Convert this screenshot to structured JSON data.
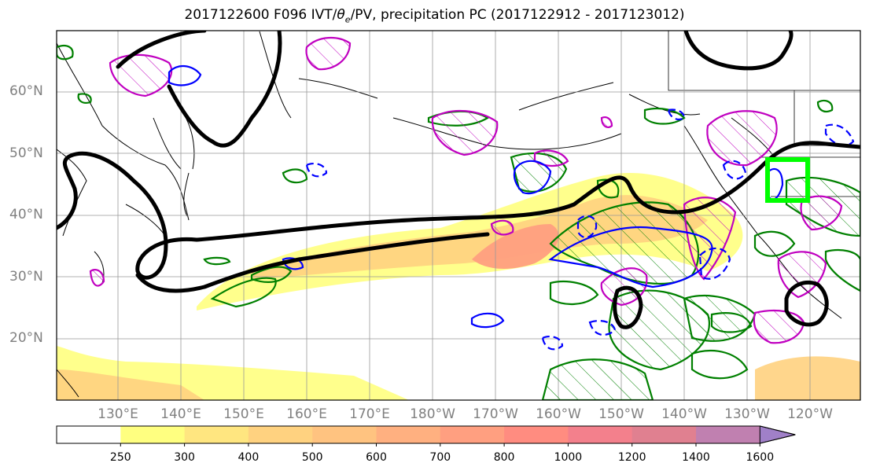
{
  "title": {
    "prefix": "2017122600 F096 IVT/",
    "theta": "θ",
    "theta_sub": "e",
    "suffix": "/PV, precipitation PC (2017122912 - 2017123012)"
  },
  "map": {
    "projection": "plate-carree",
    "lon_range_east": [
      120,
      248
    ],
    "lat_range": [
      10,
      70
    ],
    "gridlines": true,
    "lat_labels": [
      "60°N",
      "50°N",
      "40°N",
      "30°N",
      "20°N"
    ],
    "lon_labels": [
      "130°E",
      "140°E",
      "150°E",
      "160°E",
      "170°E",
      "180°W",
      "170°W",
      "160°W",
      "150°W",
      "140°W",
      "130°W",
      "120°W"
    ],
    "highlight_box_color": "#00ff00",
    "contour_colors": {
      "theta_e": "#000000",
      "pv": "#0000ff",
      "precip_pc_positive": "#008000",
      "precip_pc_negative": "#c000c0"
    }
  },
  "colorbar": {
    "levels": [
      250,
      300,
      400,
      500,
      600,
      700,
      800,
      1000,
      1200,
      1400,
      1600
    ],
    "colors": [
      "#ffff80",
      "#ffe680",
      "#ffd280",
      "#ffc380",
      "#ffb080",
      "#ff9f80",
      "#ff8c80",
      "#f3808c",
      "#e08090",
      "#c080b0",
      "#a080c8"
    ],
    "extend": "max"
  }
}
